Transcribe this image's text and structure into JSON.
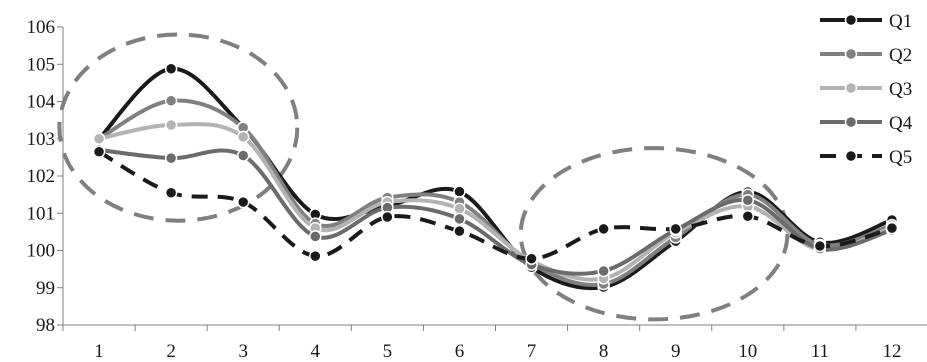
{
  "chart_data": {
    "type": "line",
    "title": "",
    "xlabel": "",
    "ylabel": "",
    "x": [
      1,
      2,
      3,
      4,
      5,
      6,
      7,
      8,
      9,
      10,
      11,
      12
    ],
    "xticks": [
      "1",
      "2",
      "3",
      "4",
      "5",
      "6",
      "7",
      "8",
      "9",
      "10",
      "11",
      "12"
    ],
    "ylim": [
      98,
      106
    ],
    "yticks": [
      "98",
      "99",
      "100",
      "101",
      "102",
      "103",
      "104",
      "105",
      "106"
    ],
    "grid": false,
    "smooth": true,
    "legend": "top-right",
    "series": [
      {
        "name": "Q1",
        "color": "#1a1a1a",
        "dash": "solid",
        "values": [
          103.0,
          104.88,
          103.3,
          100.97,
          101.2,
          101.58,
          99.55,
          99.02,
          100.25,
          101.57,
          100.22,
          100.82
        ]
      },
      {
        "name": "Q2",
        "color": "#808080",
        "dash": "solid",
        "values": [
          103.0,
          104.02,
          103.3,
          100.72,
          101.42,
          101.3,
          99.65,
          99.1,
          100.35,
          101.5,
          100.15,
          100.68
        ]
      },
      {
        "name": "Q3",
        "color": "#b3b3b3",
        "dash": "solid",
        "values": [
          103.0,
          103.37,
          103.05,
          100.6,
          101.3,
          101.12,
          99.72,
          99.25,
          100.48,
          101.18,
          100.02,
          100.62
        ]
      },
      {
        "name": "Q4",
        "color": "#6b6b6b",
        "dash": "solid",
        "values": [
          102.7,
          102.48,
          102.55,
          100.38,
          101.15,
          100.85,
          99.62,
          99.45,
          100.55,
          101.35,
          100.05,
          100.55
        ]
      },
      {
        "name": "Q5",
        "color": "#1a1a1a",
        "dash": "dashed",
        "values": [
          102.65,
          101.55,
          101.3,
          99.85,
          100.9,
          100.52,
          99.78,
          100.58,
          100.58,
          100.92,
          100.12,
          100.6
        ]
      }
    ],
    "annotations": [
      {
        "shape": "ellipse",
        "style": "dashed",
        "color": "#808080",
        "cx": 2.1,
        "cy": 103.3,
        "rx": 1.65,
        "ry": 2.5
      },
      {
        "shape": "ellipse",
        "style": "dashed",
        "color": "#808080",
        "cx": 8.7,
        "cy": 100.45,
        "rx": 1.85,
        "ry": 2.3
      }
    ]
  }
}
